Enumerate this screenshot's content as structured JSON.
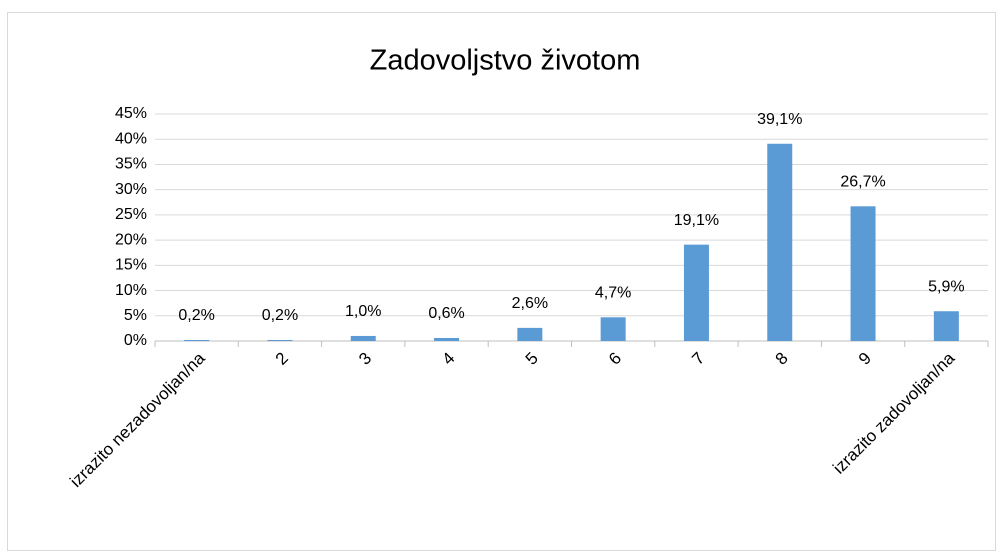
{
  "chart_data": {
    "type": "bar",
    "title": "Zadovoljstvo životom",
    "categories": [
      "izrazito nezadovoljan/na",
      "2",
      "3",
      "4",
      "5",
      "6",
      "7",
      "8",
      "9",
      "izrazito zadovoljan/na"
    ],
    "values": [
      0.2,
      0.2,
      1.0,
      0.6,
      2.6,
      4.7,
      19.1,
      39.1,
      26.7,
      5.9
    ],
    "value_labels": [
      "0,2%",
      "0,2%",
      "1,0%",
      "0,6%",
      "2,6%",
      "4,7%",
      "19,1%",
      "39,1%",
      "26,7%",
      "5,9%"
    ],
    "color": "#5b9bd5",
    "ylim": [
      0,
      45
    ],
    "yticks": [
      {
        "value": 0,
        "label": "0%"
      },
      {
        "value": 5,
        "label": "5%"
      },
      {
        "value": 10,
        "label": "10%"
      },
      {
        "value": 15,
        "label": "15%"
      },
      {
        "value": 20,
        "label": "20%"
      },
      {
        "value": 25,
        "label": "25%"
      },
      {
        "value": 30,
        "label": "30%"
      },
      {
        "value": 35,
        "label": "35%"
      },
      {
        "value": 40,
        "label": "40%"
      },
      {
        "value": 45,
        "label": "45%"
      }
    ],
    "grid": true
  }
}
